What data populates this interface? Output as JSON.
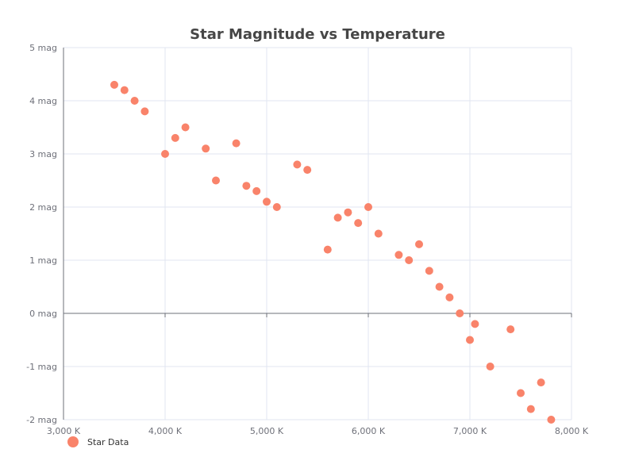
{
  "chart_data": {
    "type": "scatter",
    "title": "Star Magnitude vs Temperature",
    "xlabel": "",
    "ylabel": "",
    "xlim": [
      3000,
      8000
    ],
    "ylim": [
      -2,
      5
    ],
    "x_ticks": [
      3000,
      4000,
      5000,
      6000,
      7000,
      8000
    ],
    "x_tick_labels": [
      "3,000 K",
      "4,000 K",
      "5,000 K",
      "6,000 K",
      "7,000 K",
      "8,000 K"
    ],
    "y_ticks": [
      5,
      4,
      3,
      2,
      1,
      0,
      -1,
      -2
    ],
    "y_tick_labels": [
      "5 mag",
      "4 mag",
      "3 mag",
      "2 mag",
      "1 mag",
      "0 mag",
      "-1 mag",
      "-2 mag"
    ],
    "grid": true,
    "legend": {
      "position": "bottom-left",
      "entries": [
        "Star Data"
      ]
    },
    "series": [
      {
        "name": "Star Data",
        "color": "#f9836a",
        "points": [
          {
            "x": 3500,
            "y": 4.3
          },
          {
            "x": 3600,
            "y": 4.2
          },
          {
            "x": 3700,
            "y": 4.0
          },
          {
            "x": 3800,
            "y": 3.8
          },
          {
            "x": 4000,
            "y": 3.0
          },
          {
            "x": 4100,
            "y": 3.3
          },
          {
            "x": 4200,
            "y": 3.5
          },
          {
            "x": 4400,
            "y": 3.1
          },
          {
            "x": 4500,
            "y": 2.5
          },
          {
            "x": 4700,
            "y": 3.2
          },
          {
            "x": 4800,
            "y": 2.4
          },
          {
            "x": 4900,
            "y": 2.3
          },
          {
            "x": 5000,
            "y": 2.1
          },
          {
            "x": 5100,
            "y": 2.0
          },
          {
            "x": 5300,
            "y": 2.8
          },
          {
            "x": 5400,
            "y": 2.7
          },
          {
            "x": 5600,
            "y": 1.2
          },
          {
            "x": 5700,
            "y": 1.8
          },
          {
            "x": 5800,
            "y": 1.9
          },
          {
            "x": 5900,
            "y": 1.7
          },
          {
            "x": 6000,
            "y": 2.0
          },
          {
            "x": 6100,
            "y": 1.5
          },
          {
            "x": 6300,
            "y": 1.1
          },
          {
            "x": 6400,
            "y": 1.0
          },
          {
            "x": 6500,
            "y": 1.3
          },
          {
            "x": 6600,
            "y": 0.8
          },
          {
            "x": 6700,
            "y": 0.5
          },
          {
            "x": 6800,
            "y": 0.3
          },
          {
            "x": 6900,
            "y": 0.0
          },
          {
            "x": 7000,
            "y": -0.5
          },
          {
            "x": 7050,
            "y": -0.2
          },
          {
            "x": 7200,
            "y": -1.0
          },
          {
            "x": 7400,
            "y": -0.3
          },
          {
            "x": 7500,
            "y": -1.5
          },
          {
            "x": 7600,
            "y": -1.8
          },
          {
            "x": 7700,
            "y": -1.3
          },
          {
            "x": 7800,
            "y": -2.0
          }
        ]
      }
    ]
  }
}
